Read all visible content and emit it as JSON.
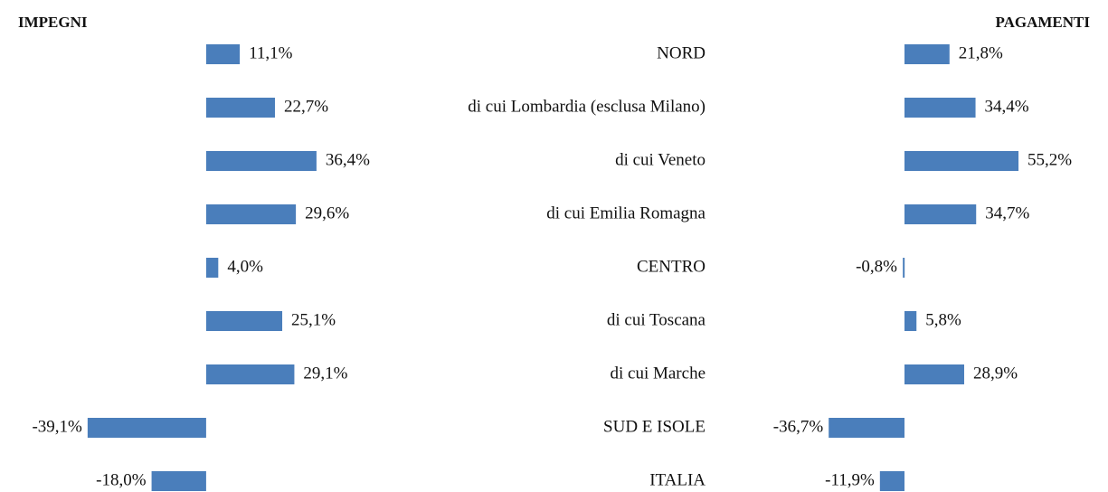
{
  "chart_data": [
    {
      "type": "hbar",
      "title": "IMPEGNI",
      "categories": [
        "NORD",
        "di cui Lombardia (esclusa Milano)",
        "di cui Veneto",
        "di cui Emilia Romagna",
        "CENTRO",
        "di cui Toscana",
        "di cui Marche",
        "SUD E ISOLE",
        "ITALIA"
      ],
      "values": [
        11.1,
        22.7,
        36.4,
        29.6,
        4.0,
        25.1,
        29.1,
        -39.1,
        -18.0
      ],
      "value_labels": [
        "11,1%",
        "22,7%",
        "36,4%",
        "29,6%",
        "4,0%",
        "25,1%",
        "29,1%",
        "-39,1%",
        "-18,0%"
      ],
      "color": "#4a7ebb",
      "xlim": [
        -68,
        60
      ]
    },
    {
      "type": "hbar",
      "title": "PAGAMENTI",
      "values": [
        21.8,
        34.4,
        55.2,
        34.7,
        -0.8,
        5.8,
        28.9,
        -36.7,
        -11.9
      ],
      "value_labels": [
        "21,8%",
        "34,4%",
        "55,2%",
        "34,7%",
        "-0,8%",
        "5,8%",
        "28,9%",
        "-36,7%",
        "-11,9%"
      ],
      "color": "#4a7ebb",
      "xlim": [
        -60,
        60
      ]
    }
  ]
}
